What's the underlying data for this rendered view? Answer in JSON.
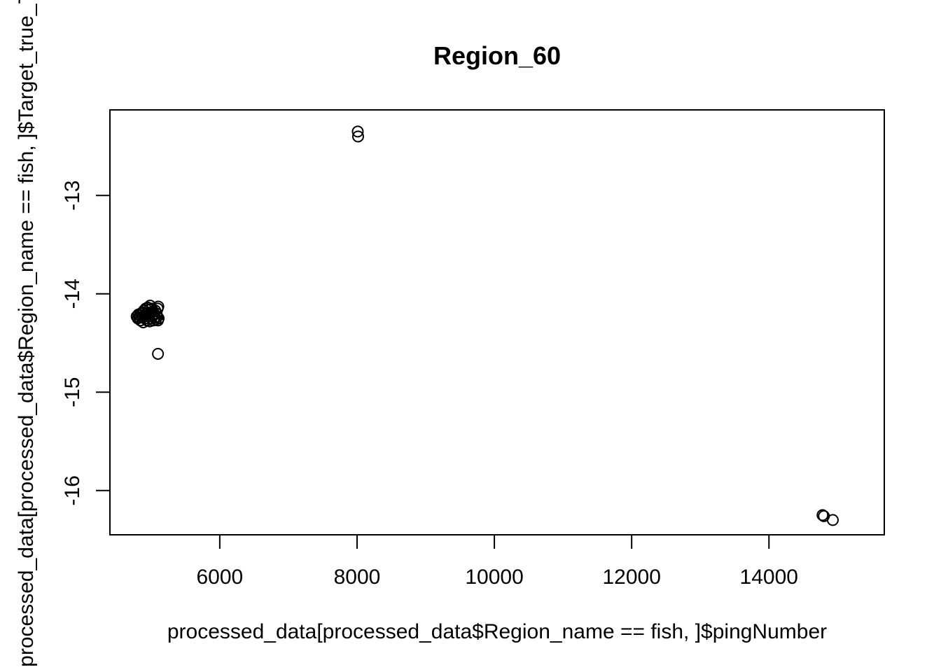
{
  "chart_data": {
    "type": "scatter",
    "title": "Region_60",
    "xlabel": "processed_data[processed_data$Region_name == fish, ]$pingNumber",
    "ylabel": "processed_data[processed_data$Region_name == fish, ]$Target_true_TS",
    "xlim": [
      4400,
      15680
    ],
    "ylim": [
      -16.45,
      -12.13
    ],
    "x_ticks": [
      6000,
      8000,
      10000,
      12000,
      14000
    ],
    "x_tick_labels": [
      "6000",
      "8000",
      "10000",
      "12000",
      "14000"
    ],
    "y_ticks": [
      -16,
      -15,
      -14,
      -13
    ],
    "y_tick_labels": [
      "-16",
      "-15",
      "-14",
      "-13"
    ],
    "grid": false,
    "legend": "none",
    "points": [
      {
        "x": 4790,
        "y": -14.23
      },
      {
        "x": 4805,
        "y": -14.25
      },
      {
        "x": 4815,
        "y": -14.21
      },
      {
        "x": 4825,
        "y": -14.24
      },
      {
        "x": 4835,
        "y": -14.22
      },
      {
        "x": 4845,
        "y": -14.27
      },
      {
        "x": 4850,
        "y": -14.2
      },
      {
        "x": 4860,
        "y": -14.24
      },
      {
        "x": 4870,
        "y": -14.19
      },
      {
        "x": 4880,
        "y": -14.23
      },
      {
        "x": 4885,
        "y": -14.29
      },
      {
        "x": 4895,
        "y": -14.17
      },
      {
        "x": 4905,
        "y": -14.22
      },
      {
        "x": 4915,
        "y": -14.25
      },
      {
        "x": 4920,
        "y": -14.15
      },
      {
        "x": 4930,
        "y": -14.2
      },
      {
        "x": 4940,
        "y": -14.27
      },
      {
        "x": 4950,
        "y": -14.14
      },
      {
        "x": 4955,
        "y": -14.19
      },
      {
        "x": 4965,
        "y": -14.23
      },
      {
        "x": 4970,
        "y": -14.16
      },
      {
        "x": 4980,
        "y": -14.28
      },
      {
        "x": 4985,
        "y": -14.12
      },
      {
        "x": 4995,
        "y": -14.2
      },
      {
        "x": 5005,
        "y": -14.25
      },
      {
        "x": 5010,
        "y": -14.15
      },
      {
        "x": 5020,
        "y": -14.22
      },
      {
        "x": 5030,
        "y": -14.18
      },
      {
        "x": 5035,
        "y": -14.27
      },
      {
        "x": 5045,
        "y": -14.21
      },
      {
        "x": 5055,
        "y": -14.24
      },
      {
        "x": 5060,
        "y": -14.17
      },
      {
        "x": 5070,
        "y": -14.26
      },
      {
        "x": 5080,
        "y": -14.2
      },
      {
        "x": 5090,
        "y": -14.23
      },
      {
        "x": 5095,
        "y": -14.15
      },
      {
        "x": 5100,
        "y": -14.27
      },
      {
        "x": 5105,
        "y": -14.13
      },
      {
        "x": 5110,
        "y": -14.25
      },
      {
        "x": 5100,
        "y": -14.61
      },
      {
        "x": 8010,
        "y": -12.35
      },
      {
        "x": 8015,
        "y": -12.4
      },
      {
        "x": 14780,
        "y": -16.25
      },
      {
        "x": 14800,
        "y": -16.26
      },
      {
        "x": 14930,
        "y": -16.3
      }
    ]
  }
}
